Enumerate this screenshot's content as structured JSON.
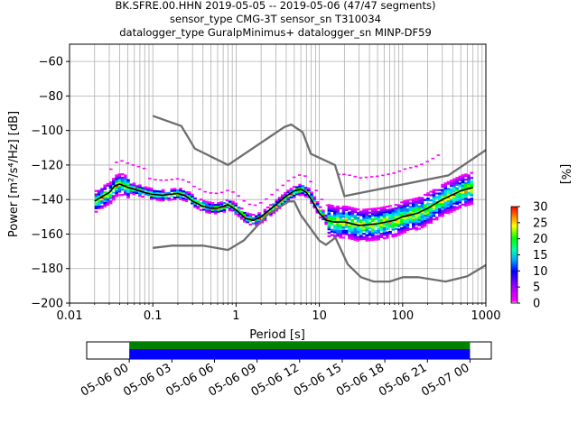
{
  "header": {
    "title_line1": "BK.SFRE.00.HHN   2019-05-05 -- 2019-05-06  (47/47 segments)",
    "title_line2": "sensor_type CMG-3T sensor_sn T310034",
    "title_line3": "datalogger_type GuralpMinimus+ datalogger_sn MINP-DF59"
  },
  "chart_data": [
    {
      "type": "heatmap",
      "title": "BK.SFRE.00.HHN   2019-05-05 -- 2019-05-06  (47/47 segments)",
      "xlabel": "Period [s]",
      "ylabel": "Power [m²/s⁴/Hz] [dB]",
      "xscale": "log",
      "xlim": [
        0.01,
        1000
      ],
      "ylim": [
        -200,
        -50
      ],
      "x_ticks": [
        "0.01",
        "0.1",
        "1",
        "10",
        "100",
        "1000"
      ],
      "y_ticks": [
        "−200",
        "−180",
        "−160",
        "−140",
        "−120",
        "−100",
        "−80",
        "−60"
      ],
      "grid": true,
      "colorbar": {
        "label": "[%]",
        "range": [
          0,
          30
        ],
        "ticks": [
          "0",
          "5",
          "10",
          "15",
          "20",
          "25",
          "30"
        ]
      },
      "mean_curve": {
        "x": [
          0.02,
          0.025,
          0.03,
          0.035,
          0.04,
          0.05,
          0.06,
          0.08,
          0.1,
          0.13,
          0.16,
          0.2,
          0.25,
          0.3,
          0.4,
          0.5,
          0.6,
          0.8,
          1,
          1.3,
          1.6,
          2,
          3,
          4,
          5,
          6,
          7,
          8,
          10,
          12,
          15,
          20,
          30,
          50,
          80,
          100,
          150,
          200,
          300,
          500,
          700
        ],
        "y": [
          -141,
          -138,
          -136,
          -132,
          -131,
          -133,
          -134,
          -136,
          -137,
          -137.5,
          -137,
          -136.5,
          -138,
          -141,
          -144,
          -145,
          -145,
          -143,
          -146,
          -151,
          -152,
          -150,
          -143,
          -138,
          -135,
          -134,
          -136,
          -140,
          -148,
          -152,
          -153,
          -153,
          -155,
          -154,
          -152,
          -150,
          -148,
          -145,
          -140,
          -135,
          -133
        ]
      },
      "noise_models": [
        {
          "x": [
            0.1,
            0.17,
            0.4,
            0.8,
            1.24,
            2.4,
            4.3,
            5,
            6,
            10,
            12,
            15.6,
            21.9,
            31.6,
            45,
            70,
            101,
            154,
            328,
            600,
            1000
          ],
          "y": [
            -168,
            -166.7,
            -166.7,
            -169.2,
            -163.7,
            -148.6,
            -141.1,
            -141.1,
            -149,
            -163.8,
            -166.2,
            -162.1,
            -177.5,
            -185,
            -187.5,
            -187.5,
            -185,
            -185,
            -187.5,
            -184.4,
            -178
          ]
        },
        {
          "x": [
            0.1,
            0.22,
            0.32,
            0.8,
            3.8,
            4.6,
            6.3,
            7.9,
            15.4,
            20,
            354.8,
            1000
          ],
          "y": [
            -91.5,
            -97.4,
            -110.5,
            -120,
            -98,
            -96.5,
            -101,
            -113.5,
            -120,
            -138,
            -126,
            -111.3
          ]
        }
      ],
      "legend_note": "segments 47/47"
    },
    {
      "type": "bar",
      "title": "",
      "xlabel": "",
      "categories": [
        "05-06 00",
        "05-06 03",
        "05-06 06",
        "05-06 09",
        "05-06 12",
        "05-06 15",
        "05-06 18",
        "05-06 21",
        "05-07 00"
      ],
      "x_ticks": [
        "05-06 00",
        "05-06 03",
        "05-06 06",
        "05-06 09",
        "05-06 12",
        "05-06 15",
        "05-06 18",
        "05-06 21",
        "05-07 00"
      ],
      "xlim": [
        "2019-05-05 21:00",
        "2019-05-07 01:30"
      ],
      "series": [
        {
          "start": "2019-05-06 00:00",
          "end": "2019-05-07 00:00",
          "color": "#008000"
        },
        {
          "start": "2019-05-06 00:00",
          "end": "2019-05-07 00:00",
          "color": "#0000ff"
        }
      ]
    }
  ]
}
